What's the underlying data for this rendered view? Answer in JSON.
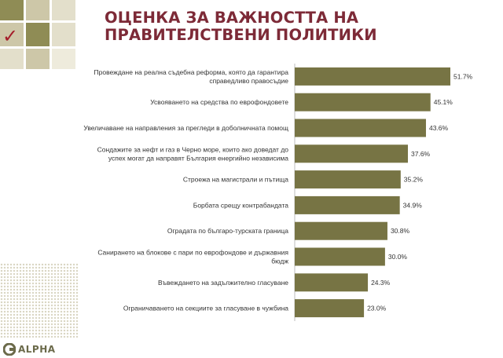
{
  "title": "ОЦЕНКА ЗА ВАЖНОСТТА НА ПРАВИТЕЛСТВЕНИ ПОЛИТИКИ",
  "logo": {
    "text": "ALPHA",
    "icon": "alpha-logo-icon"
  },
  "colors": {
    "bar": "#777444",
    "title": "#7d2a37",
    "check": "#a51d2a"
  },
  "chart_data": {
    "type": "bar",
    "orientation": "horizontal",
    "categories": [
      [
        "Провеждане на реална съдебна реформа, която да гарантира",
        "справедливо правосъдие"
      ],
      [
        "Усвояването на средства по еврофондовете"
      ],
      [
        "Увеличаване на направления за прегледи в доболничната помощ"
      ],
      [
        "Сондажите за нефт и газ в Черно море, които ако доведат до",
        "успех могат да направят България енергийно независима"
      ],
      [
        "Строежа на магистрали и пътища"
      ],
      [
        "Борбата срещу контрабандата"
      ],
      [
        "Оградата по българо-турската граница"
      ],
      [
        "Санирането на блокове с пари по еврофондове и държавния",
        "бюдж"
      ],
      [
        "Въвеждането на задължително гласуване"
      ],
      [
        "Ограничаването на секциите за гласуване в чужбина"
      ]
    ],
    "values": [
      51.7,
      45.1,
      43.6,
      37.6,
      35.2,
      34.9,
      30.8,
      30.0,
      24.3,
      23.0
    ],
    "value_labels": [
      "51.7%",
      "45.1%",
      "43.6%",
      "37.6%",
      "35.2%",
      "34.9%",
      "30.8%",
      "30.0%",
      "24.3%",
      "23.0%"
    ],
    "xlim": [
      0,
      100
    ],
    "grid": false,
    "legend": false
  }
}
